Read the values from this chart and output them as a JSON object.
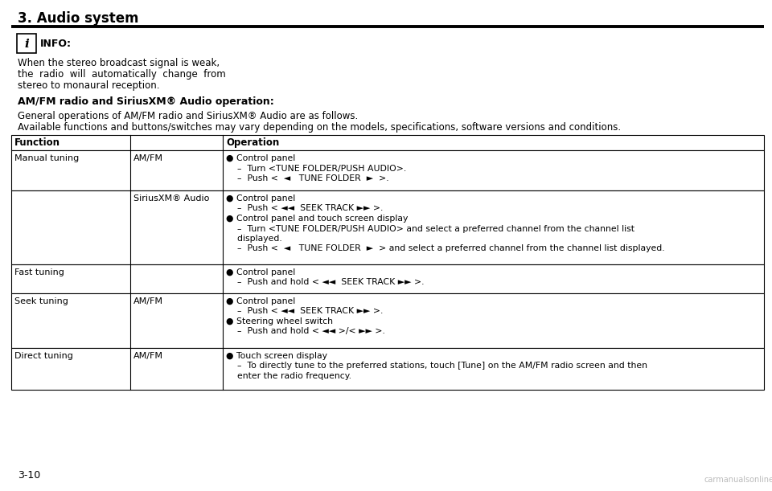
{
  "title": "3. Audio system",
  "page_number": "3-10",
  "background_color": "#ffffff",
  "title_color": "#000000",
  "info_box_text": "INFO:",
  "info_body_lines": [
    "When the stereo broadcast signal is weak,",
    "the  radio  will  automatically  change  from",
    "stereo to monaural reception."
  ],
  "section_title": "AM/FM radio and SiriusXM® Audio operation:",
  "intro_line1": "General operations of AM/FM radio and SiriusXM® Audio are as follows.",
  "intro_line2": "Available functions and buttons/switches may vary depending on the models, specifications, software versions and conditions.",
  "table_header": [
    "Function",
    "Operation"
  ],
  "watermark": "carmanualsonline.info",
  "rows": [
    {
      "function": "Manual tuning",
      "sub_function": "AM/FM",
      "operation_lines": [
        "● Control panel",
        "    –  Turn <TUNE FOLDER/PUSH AUDIO>.",
        "    –  Push <  ◄   TUNE FOLDER  ►  >."
      ]
    },
    {
      "function": "",
      "sub_function": "SiriusXM® Audio",
      "operation_lines": [
        "● Control panel",
        "    –  Push < ◄◄  SEEK TRACK ►► >.",
        "● Control panel and touch screen display",
        "    –  Turn <TUNE FOLDER/PUSH AUDIO> and select a preferred channel from the channel list",
        "    displayed.",
        "    –  Push <  ◄   TUNE FOLDER  ►  > and select a preferred channel from the channel list displayed."
      ]
    },
    {
      "function": "Fast tuning",
      "sub_function": "",
      "operation_lines": [
        "● Control panel",
        "    –  Push and hold < ◄◄  SEEK TRACK ►► >."
      ]
    },
    {
      "function": "Seek tuning",
      "sub_function": "AM/FM",
      "operation_lines": [
        "● Control panel",
        "    –  Push < ◄◄  SEEK TRACK ►► >.",
        "● Steering wheel switch",
        "    –  Push and hold < ◄◄ >/< ►► >."
      ]
    },
    {
      "function": "Direct tuning",
      "sub_function": "AM/FM",
      "operation_lines": [
        "● Touch screen display",
        "    –  To directly tune to the preferred stations, touch [Tune] on the AM/FM radio screen and then",
        "    enter the radio frequency."
      ]
    }
  ]
}
